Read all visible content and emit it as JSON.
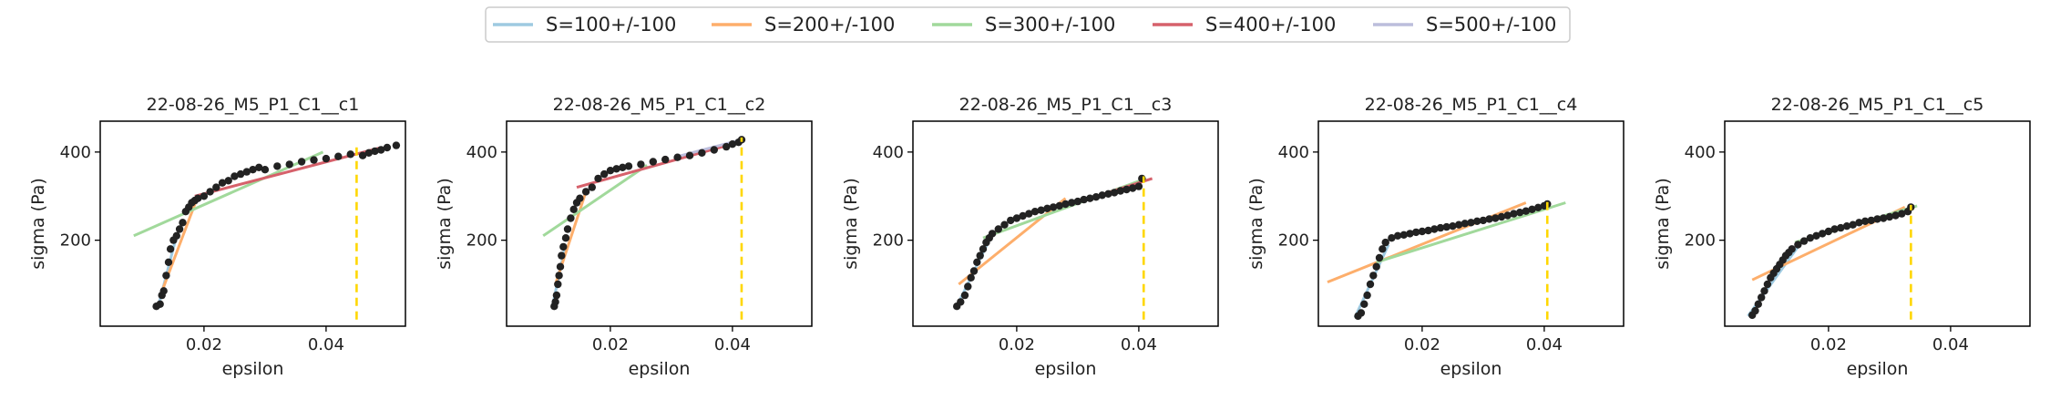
{
  "legend": {
    "placement": "top-center",
    "entries": [
      {
        "label": "S=100+/-100",
        "color": "#9ecae1"
      },
      {
        "label": "S=200+/-100",
        "color": "#fdae6b"
      },
      {
        "label": "S=300+/-100",
        "color": "#a1d99b"
      },
      {
        "label": "S=400+/-100",
        "color": "#d6616b"
      },
      {
        "label": "S=500+/-100",
        "color": "#bcbddc"
      }
    ]
  },
  "threshold_color": "#ffd700",
  "point_color": "#222222",
  "chart_data": [
    {
      "type": "scatter",
      "title": "22-08-26_M5_P1_C1__c1",
      "xlabel": "epsilon",
      "ylabel": "sigma (Pa)",
      "xlim": [
        0.003,
        0.053
      ],
      "ylim": [
        5,
        470
      ],
      "xticks": [
        "0.02",
        "0.04"
      ],
      "yticks": [
        "200",
        "400"
      ],
      "grid": false,
      "threshold_x": 0.045,
      "points": [
        [
          0.0122,
          50
        ],
        [
          0.0128,
          55
        ],
        [
          0.0131,
          75
        ],
        [
          0.0134,
          85
        ],
        [
          0.0138,
          120
        ],
        [
          0.0142,
          150
        ],
        [
          0.0145,
          180
        ],
        [
          0.015,
          200
        ],
        [
          0.0155,
          210
        ],
        [
          0.016,
          225
        ],
        [
          0.0165,
          240
        ],
        [
          0.017,
          265
        ],
        [
          0.0175,
          275
        ],
        [
          0.018,
          285
        ],
        [
          0.0185,
          290
        ],
        [
          0.019,
          295
        ],
        [
          0.02,
          300
        ],
        [
          0.021,
          310
        ],
        [
          0.022,
          320
        ],
        [
          0.023,
          330
        ],
        [
          0.024,
          335
        ],
        [
          0.025,
          345
        ],
        [
          0.026,
          350
        ],
        [
          0.027,
          355
        ],
        [
          0.028,
          360
        ],
        [
          0.029,
          365
        ],
        [
          0.03,
          360
        ],
        [
          0.032,
          368
        ],
        [
          0.034,
          372
        ],
        [
          0.036,
          378
        ],
        [
          0.038,
          382
        ],
        [
          0.04,
          385
        ],
        [
          0.042,
          390
        ],
        [
          0.044,
          395
        ],
        [
          0.046,
          392
        ],
        [
          0.047,
          398
        ],
        [
          0.048,
          402
        ],
        [
          0.049,
          405
        ],
        [
          0.05,
          410
        ],
        [
          0.0515,
          415
        ]
      ],
      "series": [
        {
          "name": "S=100+/-100",
          "x": [
            0.0125,
            0.0155
          ],
          "y": [
            50,
            210
          ]
        },
        {
          "name": "S=200+/-100",
          "x": [
            0.013,
            0.019
          ],
          "y": [
            80,
            300
          ]
        },
        {
          "name": "S=300+/-100",
          "x": [
            0.0085,
            0.0395
          ],
          "y": [
            210,
            400
          ]
        },
        {
          "name": "S=400+/-100",
          "x": [
            0.0185,
            0.049
          ],
          "y": [
            300,
            410
          ]
        }
      ]
    },
    {
      "type": "scatter",
      "title": "22-08-26_M5_P1_C1__c2",
      "xlabel": "epsilon",
      "ylabel": "sigma (Pa)",
      "xlim": [
        0.003,
        0.053
      ],
      "ylim": [
        5,
        470
      ],
      "xticks": [
        "0.02",
        "0.04"
      ],
      "yticks": [
        "200",
        "400"
      ],
      "grid": false,
      "threshold_x": 0.0415,
      "points": [
        [
          0.0108,
          50
        ],
        [
          0.011,
          60
        ],
        [
          0.0112,
          75
        ],
        [
          0.0114,
          100
        ],
        [
          0.0116,
          120
        ],
        [
          0.0118,
          140
        ],
        [
          0.012,
          165
        ],
        [
          0.0123,
          185
        ],
        [
          0.0127,
          205
        ],
        [
          0.013,
          225
        ],
        [
          0.0135,
          250
        ],
        [
          0.014,
          270
        ],
        [
          0.0145,
          285
        ],
        [
          0.015,
          295
        ],
        [
          0.016,
          310
        ],
        [
          0.017,
          320
        ],
        [
          0.018,
          340
        ],
        [
          0.019,
          350
        ],
        [
          0.02,
          358
        ],
        [
          0.021,
          362
        ],
        [
          0.022,
          365
        ],
        [
          0.023,
          368
        ],
        [
          0.025,
          372
        ],
        [
          0.027,
          378
        ],
        [
          0.029,
          383
        ],
        [
          0.031,
          388
        ],
        [
          0.033,
          392
        ],
        [
          0.035,
          398
        ],
        [
          0.037,
          405
        ],
        [
          0.039,
          412
        ],
        [
          0.04,
          418
        ],
        [
          0.041,
          422
        ],
        [
          0.0415,
          428
        ]
      ],
      "series": [
        {
          "name": "S=100+/-100",
          "x": [
            0.0105,
            0.0125
          ],
          "y": [
            50,
            180
          ]
        },
        {
          "name": "S=200+/-100",
          "x": [
            0.011,
            0.016
          ],
          "y": [
            100,
            310
          ]
        },
        {
          "name": "S=300+/-100",
          "x": [
            0.009,
            0.026
          ],
          "y": [
            210,
            370
          ]
        },
        {
          "name": "S=400+/-100",
          "x": [
            0.0145,
            0.041
          ],
          "y": [
            320,
            422
          ]
        },
        {
          "name": "S=500+/-100",
          "x": [
            0.0305,
            0.0415
          ],
          "y": [
            388,
            428
          ]
        }
      ]
    },
    {
      "type": "scatter",
      "title": "22-08-26_M5_P1_C1__c3",
      "xlabel": "epsilon",
      "ylabel": "sigma (Pa)",
      "xlim": [
        0.003,
        0.053
      ],
      "ylim": [
        5,
        470
      ],
      "xticks": [
        "0.02",
        "0.04"
      ],
      "yticks": [
        "200",
        "400"
      ],
      "grid": false,
      "threshold_x": 0.0408,
      "points": [
        [
          0.0102,
          50
        ],
        [
          0.0108,
          60
        ],
        [
          0.0115,
          75
        ],
        [
          0.012,
          95
        ],
        [
          0.0125,
          115
        ],
        [
          0.013,
          130
        ],
        [
          0.0135,
          150
        ],
        [
          0.014,
          165
        ],
        [
          0.0145,
          180
        ],
        [
          0.015,
          195
        ],
        [
          0.0155,
          205
        ],
        [
          0.016,
          215
        ],
        [
          0.017,
          225
        ],
        [
          0.018,
          235
        ],
        [
          0.019,
          245
        ],
        [
          0.02,
          250
        ],
        [
          0.021,
          255
        ],
        [
          0.022,
          260
        ],
        [
          0.023,
          265
        ],
        [
          0.024,
          268
        ],
        [
          0.025,
          272
        ],
        [
          0.026,
          275
        ],
        [
          0.027,
          278
        ],
        [
          0.028,
          282
        ],
        [
          0.029,
          285
        ],
        [
          0.03,
          288
        ],
        [
          0.031,
          292
        ],
        [
          0.032,
          295
        ],
        [
          0.033,
          298
        ],
        [
          0.034,
          302
        ],
        [
          0.035,
          305
        ],
        [
          0.036,
          308
        ],
        [
          0.037,
          312
        ],
        [
          0.038,
          315
        ],
        [
          0.039,
          318
        ],
        [
          0.04,
          322
        ],
        [
          0.0405,
          340
        ]
      ],
      "series": [
        {
          "name": "S=100+/-100",
          "x": [
            0.01,
            0.0155
          ],
          "y": [
            45,
            200
          ]
        },
        {
          "name": "S=200+/-100",
          "x": [
            0.0105,
            0.028
          ],
          "y": [
            100,
            295
          ]
        },
        {
          "name": "S=300+/-100",
          "x": [
            0.0145,
            0.0412
          ],
          "y": [
            205,
            340
          ]
        },
        {
          "name": "S=400+/-100",
          "x": [
            0.032,
            0.0422
          ],
          "y": [
            295,
            340
          ]
        }
      ]
    },
    {
      "type": "scatter",
      "title": "22-08-26_M5_P1_C1__c4",
      "xlabel": "epsilon",
      "ylabel": "sigma (Pa)",
      "xlim": [
        0.003,
        0.053
      ],
      "ylim": [
        5,
        470
      ],
      "xticks": [
        "0.02",
        "0.04"
      ],
      "yticks": [
        "200",
        "400"
      ],
      "grid": false,
      "threshold_x": 0.0405,
      "points": [
        [
          0.0095,
          28
        ],
        [
          0.01,
          35
        ],
        [
          0.0105,
          55
        ],
        [
          0.011,
          75
        ],
        [
          0.0115,
          100
        ],
        [
          0.012,
          120
        ],
        [
          0.0125,
          140
        ],
        [
          0.013,
          160
        ],
        [
          0.0135,
          180
        ],
        [
          0.014,
          195
        ],
        [
          0.015,
          205
        ],
        [
          0.016,
          210
        ],
        [
          0.017,
          212
        ],
        [
          0.018,
          215
        ],
        [
          0.019,
          218
        ],
        [
          0.02,
          220
        ],
        [
          0.021,
          222
        ],
        [
          0.022,
          225
        ],
        [
          0.023,
          228
        ],
        [
          0.024,
          230
        ],
        [
          0.025,
          232
        ],
        [
          0.026,
          235
        ],
        [
          0.027,
          238
        ],
        [
          0.028,
          240
        ],
        [
          0.029,
          243
        ],
        [
          0.03,
          245
        ],
        [
          0.031,
          248
        ],
        [
          0.032,
          250
        ],
        [
          0.033,
          253
        ],
        [
          0.034,
          256
        ],
        [
          0.035,
          260
        ],
        [
          0.036,
          263
        ],
        [
          0.037,
          266
        ],
        [
          0.038,
          270
        ],
        [
          0.039,
          274
        ],
        [
          0.04,
          278
        ],
        [
          0.0405,
          282
        ]
      ],
      "series": [
        {
          "name": "S=100+/-100",
          "x": [
            0.009,
            0.0145
          ],
          "y": [
            25,
            190
          ]
        },
        {
          "name": "S=200+/-100",
          "x": [
            0.0045,
            0.037
          ],
          "y": [
            105,
            285
          ]
        },
        {
          "name": "S=300+/-100",
          "x": [
            0.0125,
            0.0435
          ],
          "y": [
            150,
            285
          ]
        }
      ]
    },
    {
      "type": "scatter",
      "title": "22-08-26_M5_P1_C1__c5",
      "xlabel": "epsilon",
      "ylabel": "sigma (Pa)",
      "xlim": [
        0.003,
        0.053
      ],
      "ylim": [
        5,
        470
      ],
      "xticks": [
        "0.02",
        "0.04"
      ],
      "yticks": [
        "200",
        "400"
      ],
      "grid": false,
      "threshold_x": 0.0335,
      "points": [
        [
          0.0075,
          30
        ],
        [
          0.008,
          40
        ],
        [
          0.0085,
          55
        ],
        [
          0.009,
          70
        ],
        [
          0.0095,
          85
        ],
        [
          0.01,
          100
        ],
        [
          0.0105,
          115
        ],
        [
          0.011,
          125
        ],
        [
          0.0115,
          135
        ],
        [
          0.012,
          145
        ],
        [
          0.0125,
          155
        ],
        [
          0.013,
          165
        ],
        [
          0.0135,
          172
        ],
        [
          0.014,
          180
        ],
        [
          0.015,
          190
        ],
        [
          0.016,
          198
        ],
        [
          0.017,
          205
        ],
        [
          0.018,
          210
        ],
        [
          0.019,
          215
        ],
        [
          0.02,
          220
        ],
        [
          0.021,
          225
        ],
        [
          0.022,
          228
        ],
        [
          0.023,
          232
        ],
        [
          0.024,
          235
        ],
        [
          0.025,
          240
        ],
        [
          0.026,
          243
        ],
        [
          0.027,
          245
        ],
        [
          0.028,
          248
        ],
        [
          0.029,
          250
        ],
        [
          0.03,
          253
        ],
        [
          0.031,
          256
        ],
        [
          0.032,
          260
        ],
        [
          0.033,
          265
        ],
        [
          0.0335,
          275
        ]
      ],
      "series": [
        {
          "name": "S=100+/-100",
          "x": [
            0.0068,
            0.0155
          ],
          "y": [
            28,
            195
          ]
        },
        {
          "name": "S=200+/-100",
          "x": [
            0.0075,
            0.0325
          ],
          "y": [
            110,
            275
          ]
        },
        {
          "name": "S=300+/-100",
          "x": [
            0.0145,
            0.0345
          ],
          "y": [
            195,
            278
          ]
        }
      ]
    }
  ]
}
